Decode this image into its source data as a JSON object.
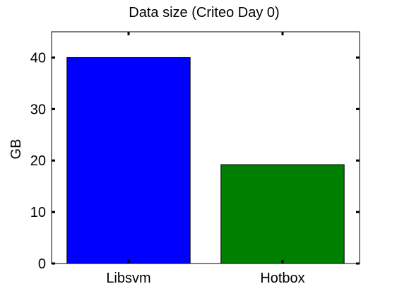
{
  "chart_data": {
    "type": "bar",
    "title": "Data size (Criteo Day 0)",
    "xlabel": "",
    "ylabel": "GB",
    "categories": [
      "Libsvm",
      "Hotbox"
    ],
    "values": [
      40,
      19.2
    ],
    "colors": [
      "#0000ff",
      "#008000"
    ],
    "ylim": [
      0,
      45
    ],
    "yticks": [
      0,
      10,
      20,
      30,
      40
    ],
    "grid": false,
    "legend": "none"
  }
}
